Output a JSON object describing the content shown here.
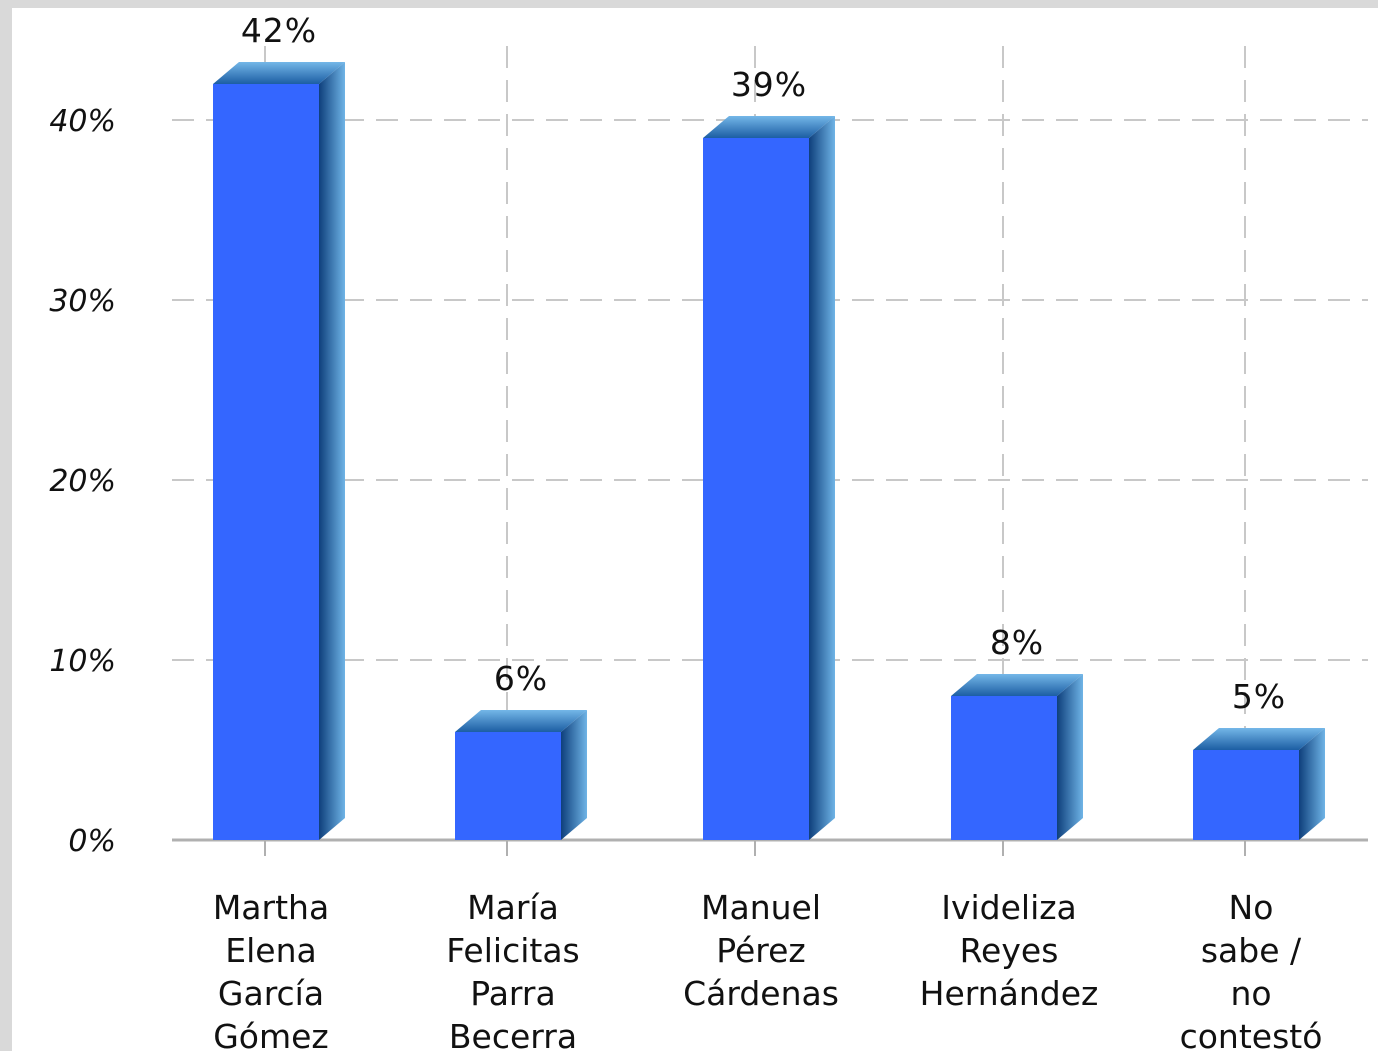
{
  "chart_data": {
    "type": "bar",
    "title": "",
    "xlabel": "",
    "ylabel": "",
    "categories": [
      [
        "Martha",
        "Elena",
        "García",
        "Gómez"
      ],
      [
        "María",
        "Felicitas",
        "Parra",
        "Becerra"
      ],
      [
        "Manuel",
        "Pérez",
        "Cárdenas"
      ],
      [
        "Ivideliza",
        "Reyes",
        "Hernández"
      ],
      [
        "No",
        "sabe /",
        "no",
        "contestó"
      ]
    ],
    "values": [
      42,
      6,
      39,
      8,
      5
    ],
    "value_labels": [
      "42%",
      "6%",
      "39%",
      "8%",
      "5%"
    ],
    "ylim": [
      0,
      45
    ],
    "yticks": [
      0,
      10,
      20,
      30,
      40
    ],
    "ytick_labels": [
      "0%",
      "10%",
      "20%",
      "30%",
      "40%"
    ],
    "grid": true,
    "legend": "none",
    "colors": {
      "bar_front": "#3466ff",
      "bar_side_dark": "#0e3f7c",
      "bar_side_light": "#5ea6dc",
      "bar_top": "#2c7fbf",
      "grid": "#c8c8c8",
      "axis": "#b0b0b0"
    }
  }
}
